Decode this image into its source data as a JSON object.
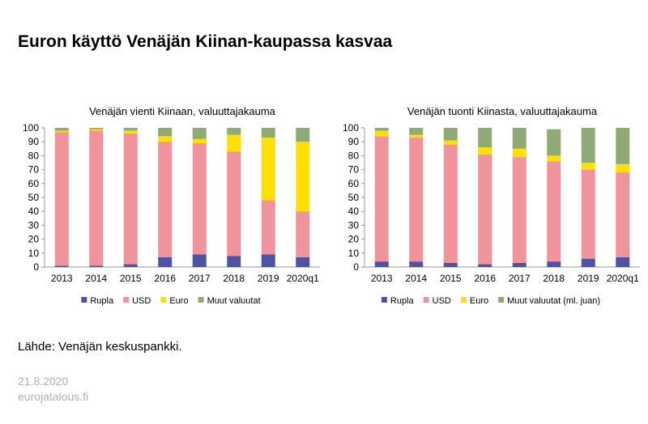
{
  "page": {
    "title": "Euron käyttö Venäjän Kiinan-kaupassa kasvaa",
    "source": "Lähde: Venäjän keskuspankki.",
    "date": "21.8.2020",
    "site": "eurojatalous.fi"
  },
  "colors": {
    "Rupla": "#4f53a6",
    "USD": "#f0939a",
    "Euro": "#ffe000",
    "Muut": "#8faa74"
  },
  "chart_data": [
    {
      "type": "bar",
      "stacked": true,
      "title": "Venäjän vienti Kiinaan, valuuttajakauma",
      "categories": [
        "2013",
        "2014",
        "2015",
        "2016",
        "2017",
        "2018",
        "2019",
        "2020q1"
      ],
      "ylim": [
        0,
        100
      ],
      "yticks": [
        0,
        10,
        20,
        30,
        40,
        50,
        60,
        70,
        80,
        90,
        100
      ],
      "legend": "bottom",
      "series": [
        {
          "name": "Rupla",
          "color_key": "Rupla",
          "values": [
            1,
            1,
            2,
            7,
            9,
            8,
            9,
            7
          ]
        },
        {
          "name": "USD",
          "color_key": "USD",
          "values": [
            96,
            97,
            94,
            83,
            80,
            75,
            39,
            33
          ]
        },
        {
          "name": "Euro",
          "color_key": "Euro",
          "values": [
            1,
            1,
            2,
            4,
            3,
            12,
            45,
            50
          ]
        },
        {
          "name": "Muut valuutat",
          "color_key": "Muut",
          "values": [
            2,
            1,
            2,
            6,
            8,
            5,
            7,
            10
          ]
        }
      ]
    },
    {
      "type": "bar",
      "stacked": true,
      "title": "Venäjän tuonti Kiinasta, valuuttajakauma",
      "categories": [
        "2013",
        "2014",
        "2015",
        "2016",
        "2017",
        "2018",
        "2019",
        "2020q1"
      ],
      "ylim": [
        0,
        100
      ],
      "yticks": [
        0,
        10,
        20,
        30,
        40,
        50,
        60,
        70,
        80,
        90,
        100
      ],
      "legend": "bottom",
      "series": [
        {
          "name": "Rupla",
          "color_key": "Rupla",
          "values": [
            4,
            4,
            3,
            2,
            3,
            4,
            6,
            7
          ]
        },
        {
          "name": "USD",
          "color_key": "USD",
          "values": [
            90,
            89,
            85,
            79,
            76,
            72,
            64,
            61
          ]
        },
        {
          "name": "Euro",
          "color_key": "Euro",
          "values": [
            4,
            2,
            3,
            5,
            6,
            4,
            5,
            6
          ]
        },
        {
          "name": "Muut valuutat (ml. juan)",
          "color_key": "Muut",
          "values": [
            2,
            5,
            9,
            14,
            15,
            19,
            25,
            26
          ]
        }
      ]
    }
  ]
}
